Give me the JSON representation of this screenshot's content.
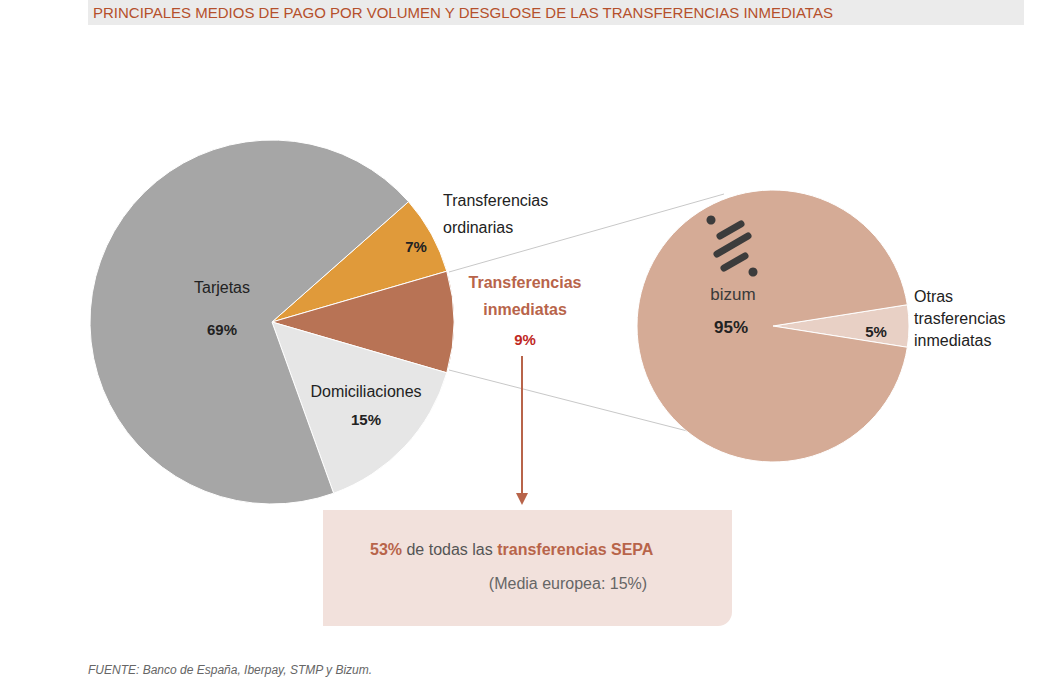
{
  "title": "PRINCIPALES MEDIOS DE PAGO POR VOLUMEN Y DESGLOSE DE LAS TRANSFERENCIAS INMEDIATAS",
  "source": "FUENTE: Banco de España, Iberpay, STMP y Bizum.",
  "chart_data": [
    {
      "type": "pie",
      "categories": [
        "Transferencias ordinarias",
        "Transferencias inmediatas",
        "Domiciliaciones",
        "Tarjetas"
      ],
      "values": [
        7,
        9,
        15,
        69
      ],
      "value_labels": [
        "7%",
        "9%",
        "15%",
        "69%"
      ],
      "colors": [
        "#e09a3a",
        "#b87355",
        "#e6e6e6",
        "#a6a6a6"
      ]
    },
    {
      "type": "pie",
      "categories": [
        "Otras trasferencias inmediatas",
        "bizum"
      ],
      "values": [
        5,
        95
      ],
      "value_labels": [
        "5%",
        "95%"
      ],
      "colors": [
        "#e8d0c5",
        "#d5ab96"
      ]
    }
  ],
  "annotation": {
    "parts": [
      {
        "text": "53%",
        "style": "highlight"
      },
      {
        "text": " de todas las ",
        "style": "normal"
      },
      {
        "text": "transferencias SEPA",
        "style": "highlight"
      }
    ],
    "note": "(Media europea: 15%)"
  }
}
